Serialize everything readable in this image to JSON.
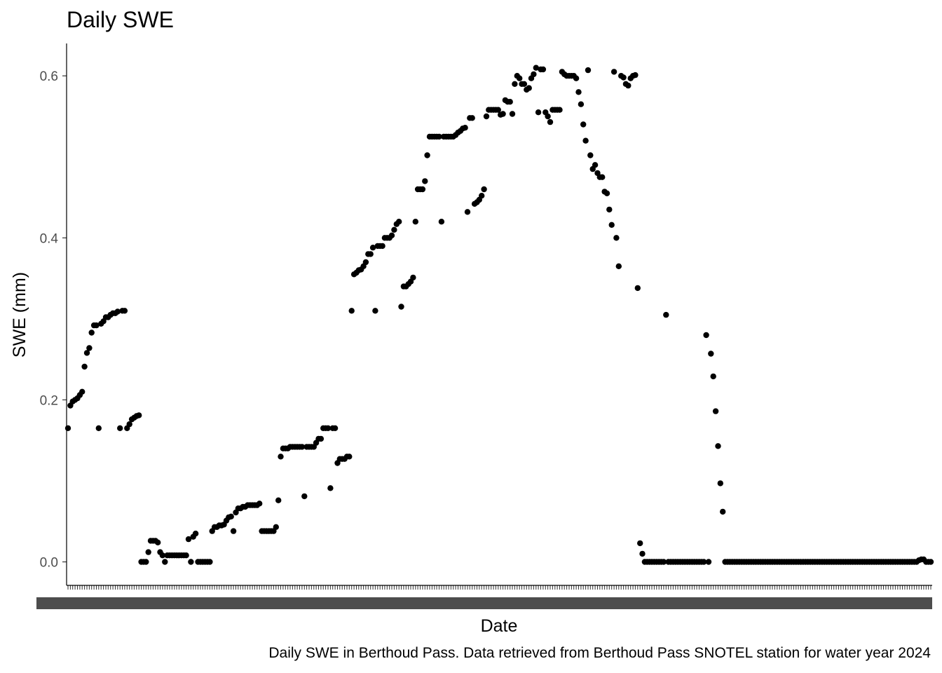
{
  "chart_data": {
    "type": "scatter",
    "title": "Daily SWE",
    "xlabel": "Date",
    "ylabel": "SWE (mm)",
    "caption": "Daily SWE in Berthoud Pass. Data retrieved from Berthoud Pass SNOTEL station for water year 2024",
    "ylim": [
      -0.029,
      0.64
    ],
    "yticks": [
      0.0,
      0.2,
      0.4,
      0.6
    ],
    "ytick_labels": [
      "0.0",
      "0.2",
      "0.4",
      "0.6"
    ],
    "grid": false,
    "legend": "none",
    "x_is_day_index": true,
    "n_days": 366,
    "point_color": "#000000",
    "points": [
      [
        1,
        0.165
      ],
      [
        2,
        0.193
      ],
      [
        3,
        0.198
      ],
      [
        4,
        0.2
      ],
      [
        5,
        0.202
      ],
      [
        6,
        0.206
      ],
      [
        7,
        0.21
      ],
      [
        8,
        0.241
      ],
      [
        9,
        0.258
      ],
      [
        10,
        0.264
      ],
      [
        11,
        0.283
      ],
      [
        12,
        0.292
      ],
      [
        13,
        0.292
      ],
      [
        14,
        0.165
      ],
      [
        15,
        0.294
      ],
      [
        16,
        0.297
      ],
      [
        17,
        0.302
      ],
      [
        18,
        0.302
      ],
      [
        19,
        0.305
      ],
      [
        20,
        0.307
      ],
      [
        21,
        0.307
      ],
      [
        22,
        0.309
      ],
      [
        23,
        0.165
      ],
      [
        24,
        0.31
      ],
      [
        25,
        0.31
      ],
      [
        26,
        0.165
      ],
      [
        27,
        0.17
      ],
      [
        28,
        0.176
      ],
      [
        29,
        0.178
      ],
      [
        30,
        0.18
      ],
      [
        31,
        0.181
      ],
      [
        32,
        0.0
      ],
      [
        33,
        0.0
      ],
      [
        34,
        0.0
      ],
      [
        35,
        0.012
      ],
      [
        36,
        0.026
      ],
      [
        37,
        0.026
      ],
      [
        38,
        0.026
      ],
      [
        39,
        0.024
      ],
      [
        40,
        0.012
      ],
      [
        41,
        0.008
      ],
      [
        42,
        0.0
      ],
      [
        43,
        0.008
      ],
      [
        44,
        0.008
      ],
      [
        45,
        0.008
      ],
      [
        46,
        0.008
      ],
      [
        47,
        0.008
      ],
      [
        48,
        0.008
      ],
      [
        49,
        0.008
      ],
      [
        50,
        0.008
      ],
      [
        51,
        0.008
      ],
      [
        52,
        0.028
      ],
      [
        53,
        0.0
      ],
      [
        54,
        0.031
      ],
      [
        55,
        0.035
      ],
      [
        56,
        0.0
      ],
      [
        57,
        0.0
      ],
      [
        58,
        0.0
      ],
      [
        59,
        0.0
      ],
      [
        60,
        0.0
      ],
      [
        61,
        0.0
      ],
      [
        62,
        0.038
      ],
      [
        63,
        0.043
      ],
      [
        64,
        0.043
      ],
      [
        65,
        0.045
      ],
      [
        66,
        0.045
      ],
      [
        67,
        0.046
      ],
      [
        68,
        0.051
      ],
      [
        69,
        0.055
      ],
      [
        70,
        0.056
      ],
      [
        71,
        0.038
      ],
      [
        72,
        0.061
      ],
      [
        73,
        0.066
      ],
      [
        74,
        0.066
      ],
      [
        75,
        0.068
      ],
      [
        76,
        0.068
      ],
      [
        77,
        0.07
      ],
      [
        78,
        0.07
      ],
      [
        79,
        0.07
      ],
      [
        80,
        0.07
      ],
      [
        81,
        0.07
      ],
      [
        82,
        0.072
      ],
      [
        83,
        0.038
      ],
      [
        84,
        0.038
      ],
      [
        85,
        0.038
      ],
      [
        86,
        0.038
      ],
      [
        87,
        0.038
      ],
      [
        88,
        0.038
      ],
      [
        89,
        0.043
      ],
      [
        90,
        0.076
      ],
      [
        91,
        0.13
      ],
      [
        92,
        0.14
      ],
      [
        93,
        0.14
      ],
      [
        94,
        0.14
      ],
      [
        95,
        0.142
      ],
      [
        96,
        0.142
      ],
      [
        97,
        0.142
      ],
      [
        98,
        0.142
      ],
      [
        99,
        0.142
      ],
      [
        100,
        0.142
      ],
      [
        101,
        0.081
      ],
      [
        102,
        0.142
      ],
      [
        103,
        0.142
      ],
      [
        104,
        0.142
      ],
      [
        105,
        0.142
      ],
      [
        106,
        0.147
      ],
      [
        107,
        0.152
      ],
      [
        108,
        0.152
      ],
      [
        109,
        0.165
      ],
      [
        110,
        0.165
      ],
      [
        111,
        0.165
      ],
      [
        112,
        0.091
      ],
      [
        113,
        0.165
      ],
      [
        114,
        0.165
      ],
      [
        115,
        0.122
      ],
      [
        116,
        0.127
      ],
      [
        117,
        0.127
      ],
      [
        118,
        0.127
      ],
      [
        119,
        0.13
      ],
      [
        120,
        0.13
      ],
      [
        121,
        0.31
      ],
      [
        122,
        0.355
      ],
      [
        123,
        0.357
      ],
      [
        124,
        0.36
      ],
      [
        125,
        0.361
      ],
      [
        126,
        0.365
      ],
      [
        127,
        0.37
      ],
      [
        128,
        0.38
      ],
      [
        129,
        0.38
      ],
      [
        130,
        0.388
      ],
      [
        131,
        0.31
      ],
      [
        132,
        0.39
      ],
      [
        133,
        0.39
      ],
      [
        134,
        0.39
      ],
      [
        135,
        0.4
      ],
      [
        136,
        0.4
      ],
      [
        137,
        0.4
      ],
      [
        138,
        0.403
      ],
      [
        139,
        0.41
      ],
      [
        140,
        0.417
      ],
      [
        141,
        0.42
      ],
      [
        142,
        0.315
      ],
      [
        143,
        0.34
      ],
      [
        144,
        0.34
      ],
      [
        145,
        0.343
      ],
      [
        146,
        0.346
      ],
      [
        147,
        0.351
      ],
      [
        148,
        0.42
      ],
      [
        149,
        0.46
      ],
      [
        150,
        0.46
      ],
      [
        151,
        0.46
      ],
      [
        152,
        0.47
      ],
      [
        153,
        0.502
      ],
      [
        154,
        0.525
      ],
      [
        155,
        0.525
      ],
      [
        156,
        0.525
      ],
      [
        157,
        0.525
      ],
      [
        158,
        0.525
      ],
      [
        159,
        0.42
      ],
      [
        160,
        0.525
      ],
      [
        161,
        0.525
      ],
      [
        162,
        0.525
      ],
      [
        163,
        0.525
      ],
      [
        164,
        0.525
      ],
      [
        165,
        0.527
      ],
      [
        166,
        0.53
      ],
      [
        167,
        0.532
      ],
      [
        168,
        0.535
      ],
      [
        169,
        0.536
      ],
      [
        170,
        0.432
      ],
      [
        171,
        0.548
      ],
      [
        172,
        0.548
      ],
      [
        173,
        0.442
      ],
      [
        174,
        0.444
      ],
      [
        175,
        0.447
      ],
      [
        176,
        0.452
      ],
      [
        177,
        0.46
      ],
      [
        178,
        0.55
      ],
      [
        179,
        0.558
      ],
      [
        180,
        0.558
      ],
      [
        181,
        0.558
      ],
      [
        182,
        0.558
      ],
      [
        183,
        0.558
      ],
      [
        184,
        0.552
      ],
      [
        185,
        0.553
      ],
      [
        186,
        0.57
      ],
      [
        187,
        0.568
      ],
      [
        188,
        0.568
      ],
      [
        189,
        0.553
      ],
      [
        190,
        0.59
      ],
      [
        191,
        0.6
      ],
      [
        192,
        0.597
      ],
      [
        193,
        0.59
      ],
      [
        194,
        0.59
      ],
      [
        195,
        0.583
      ],
      [
        196,
        0.585
      ],
      [
        197,
        0.597
      ],
      [
        198,
        0.602
      ],
      [
        199,
        0.61
      ],
      [
        200,
        0.555
      ],
      [
        201,
        0.608
      ],
      [
        202,
        0.608
      ],
      [
        203,
        0.555
      ],
      [
        204,
        0.55
      ],
      [
        205,
        0.543
      ],
      [
        206,
        0.558
      ],
      [
        207,
        0.558
      ],
      [
        208,
        0.558
      ],
      [
        209,
        0.558
      ],
      [
        210,
        0.605
      ],
      [
        211,
        0.602
      ],
      [
        212,
        0.6
      ],
      [
        213,
        0.6
      ],
      [
        214,
        0.6
      ],
      [
        215,
        0.6
      ],
      [
        216,
        0.597
      ],
      [
        217,
        0.58
      ],
      [
        218,
        0.565
      ],
      [
        219,
        0.54
      ],
      [
        220,
        0.52
      ],
      [
        221,
        0.607
      ],
      [
        222,
        0.502
      ],
      [
        223,
        0.485
      ],
      [
        224,
        0.49
      ],
      [
        225,
        0.48
      ],
      [
        226,
        0.475
      ],
      [
        227,
        0.475
      ],
      [
        228,
        0.457
      ],
      [
        229,
        0.455
      ],
      [
        230,
        0.435
      ],
      [
        231,
        0.416
      ],
      [
        232,
        0.605
      ],
      [
        233,
        0.4
      ],
      [
        234,
        0.365
      ],
      [
        235,
        0.6
      ],
      [
        236,
        0.598
      ],
      [
        237,
        0.59
      ],
      [
        238,
        0.588
      ],
      [
        239,
        0.597
      ],
      [
        240,
        0.6
      ],
      [
        241,
        0.601
      ],
      [
        242,
        0.338
      ],
      [
        243,
        0.023
      ],
      [
        244,
        0.01
      ],
      [
        245,
        0.0
      ],
      [
        246,
        0.0
      ],
      [
        247,
        0.0
      ],
      [
        248,
        0.0
      ],
      [
        249,
        0.0
      ],
      [
        250,
        0.0
      ],
      [
        251,
        0.0
      ],
      [
        252,
        0.0
      ],
      [
        253,
        0.0
      ],
      [
        254,
        0.305
      ],
      [
        255,
        0.0
      ],
      [
        256,
        0.0
      ],
      [
        257,
        0.0
      ],
      [
        258,
        0.0
      ],
      [
        259,
        0.0
      ],
      [
        260,
        0.0
      ],
      [
        261,
        0.0
      ],
      [
        262,
        0.0
      ],
      [
        263,
        0.0
      ],
      [
        264,
        0.0
      ],
      [
        265,
        0.0
      ],
      [
        266,
        0.0
      ],
      [
        267,
        0.0
      ],
      [
        268,
        0.0
      ],
      [
        269,
        0.0
      ],
      [
        270,
        0.0
      ],
      [
        271,
        0.28
      ],
      [
        272,
        0.0
      ],
      [
        273,
        0.257
      ],
      [
        274,
        0.229
      ],
      [
        275,
        0.186
      ],
      [
        276,
        0.143
      ],
      [
        277,
        0.097
      ],
      [
        278,
        0.062
      ],
      [
        279,
        0.0
      ],
      [
        280,
        0.0
      ],
      [
        281,
        0.0
      ],
      [
        282,
        0.0
      ],
      [
        283,
        0.0
      ],
      [
        284,
        0.0
      ],
      [
        285,
        0.0
      ],
      [
        286,
        0.0
      ],
      [
        287,
        0.0
      ],
      [
        288,
        0.0
      ],
      [
        289,
        0.0
      ],
      [
        290,
        0.0
      ],
      [
        291,
        0.0
      ],
      [
        292,
        0.0
      ],
      [
        293,
        0.0
      ],
      [
        294,
        0.0
      ],
      [
        295,
        0.0
      ],
      [
        296,
        0.0
      ],
      [
        297,
        0.0
      ],
      [
        298,
        0.0
      ],
      [
        299,
        0.0
      ],
      [
        300,
        0.0
      ],
      [
        301,
        0.0
      ],
      [
        302,
        0.0
      ],
      [
        303,
        0.0
      ],
      [
        304,
        0.0
      ],
      [
        305,
        0.0
      ],
      [
        306,
        0.0
      ],
      [
        307,
        0.0
      ],
      [
        308,
        0.0
      ],
      [
        309,
        0.0
      ],
      [
        310,
        0.0
      ],
      [
        311,
        0.0
      ],
      [
        312,
        0.0
      ],
      [
        313,
        0.0
      ],
      [
        314,
        0.0
      ],
      [
        315,
        0.0
      ],
      [
        316,
        0.0
      ],
      [
        317,
        0.0
      ],
      [
        318,
        0.0
      ],
      [
        319,
        0.0
      ],
      [
        320,
        0.0
      ],
      [
        321,
        0.0
      ],
      [
        322,
        0.0
      ],
      [
        323,
        0.0
      ],
      [
        324,
        0.0
      ],
      [
        325,
        0.0
      ],
      [
        326,
        0.0
      ],
      [
        327,
        0.0
      ],
      [
        328,
        0.0
      ],
      [
        329,
        0.0
      ],
      [
        330,
        0.0
      ],
      [
        331,
        0.0
      ],
      [
        332,
        0.0
      ],
      [
        333,
        0.0
      ],
      [
        334,
        0.0
      ],
      [
        335,
        0.0
      ],
      [
        336,
        0.0
      ],
      [
        337,
        0.0
      ],
      [
        338,
        0.0
      ],
      [
        339,
        0.0
      ],
      [
        340,
        0.0
      ],
      [
        341,
        0.0
      ],
      [
        342,
        0.0
      ],
      [
        343,
        0.0
      ],
      [
        344,
        0.0
      ],
      [
        345,
        0.0
      ],
      [
        346,
        0.0
      ],
      [
        347,
        0.0
      ],
      [
        348,
        0.0
      ],
      [
        349,
        0.0
      ],
      [
        350,
        0.0
      ],
      [
        351,
        0.0
      ],
      [
        352,
        0.0
      ],
      [
        353,
        0.0
      ],
      [
        354,
        0.0
      ],
      [
        355,
        0.0
      ],
      [
        356,
        0.0
      ],
      [
        357,
        0.0
      ],
      [
        358,
        0.0
      ],
      [
        359,
        0.0
      ],
      [
        360,
        0.0
      ],
      [
        361,
        0.002
      ],
      [
        362,
        0.003
      ],
      [
        363,
        0.003
      ],
      [
        364,
        0.0
      ],
      [
        365,
        0.0
      ],
      [
        366,
        0.0
      ]
    ]
  }
}
